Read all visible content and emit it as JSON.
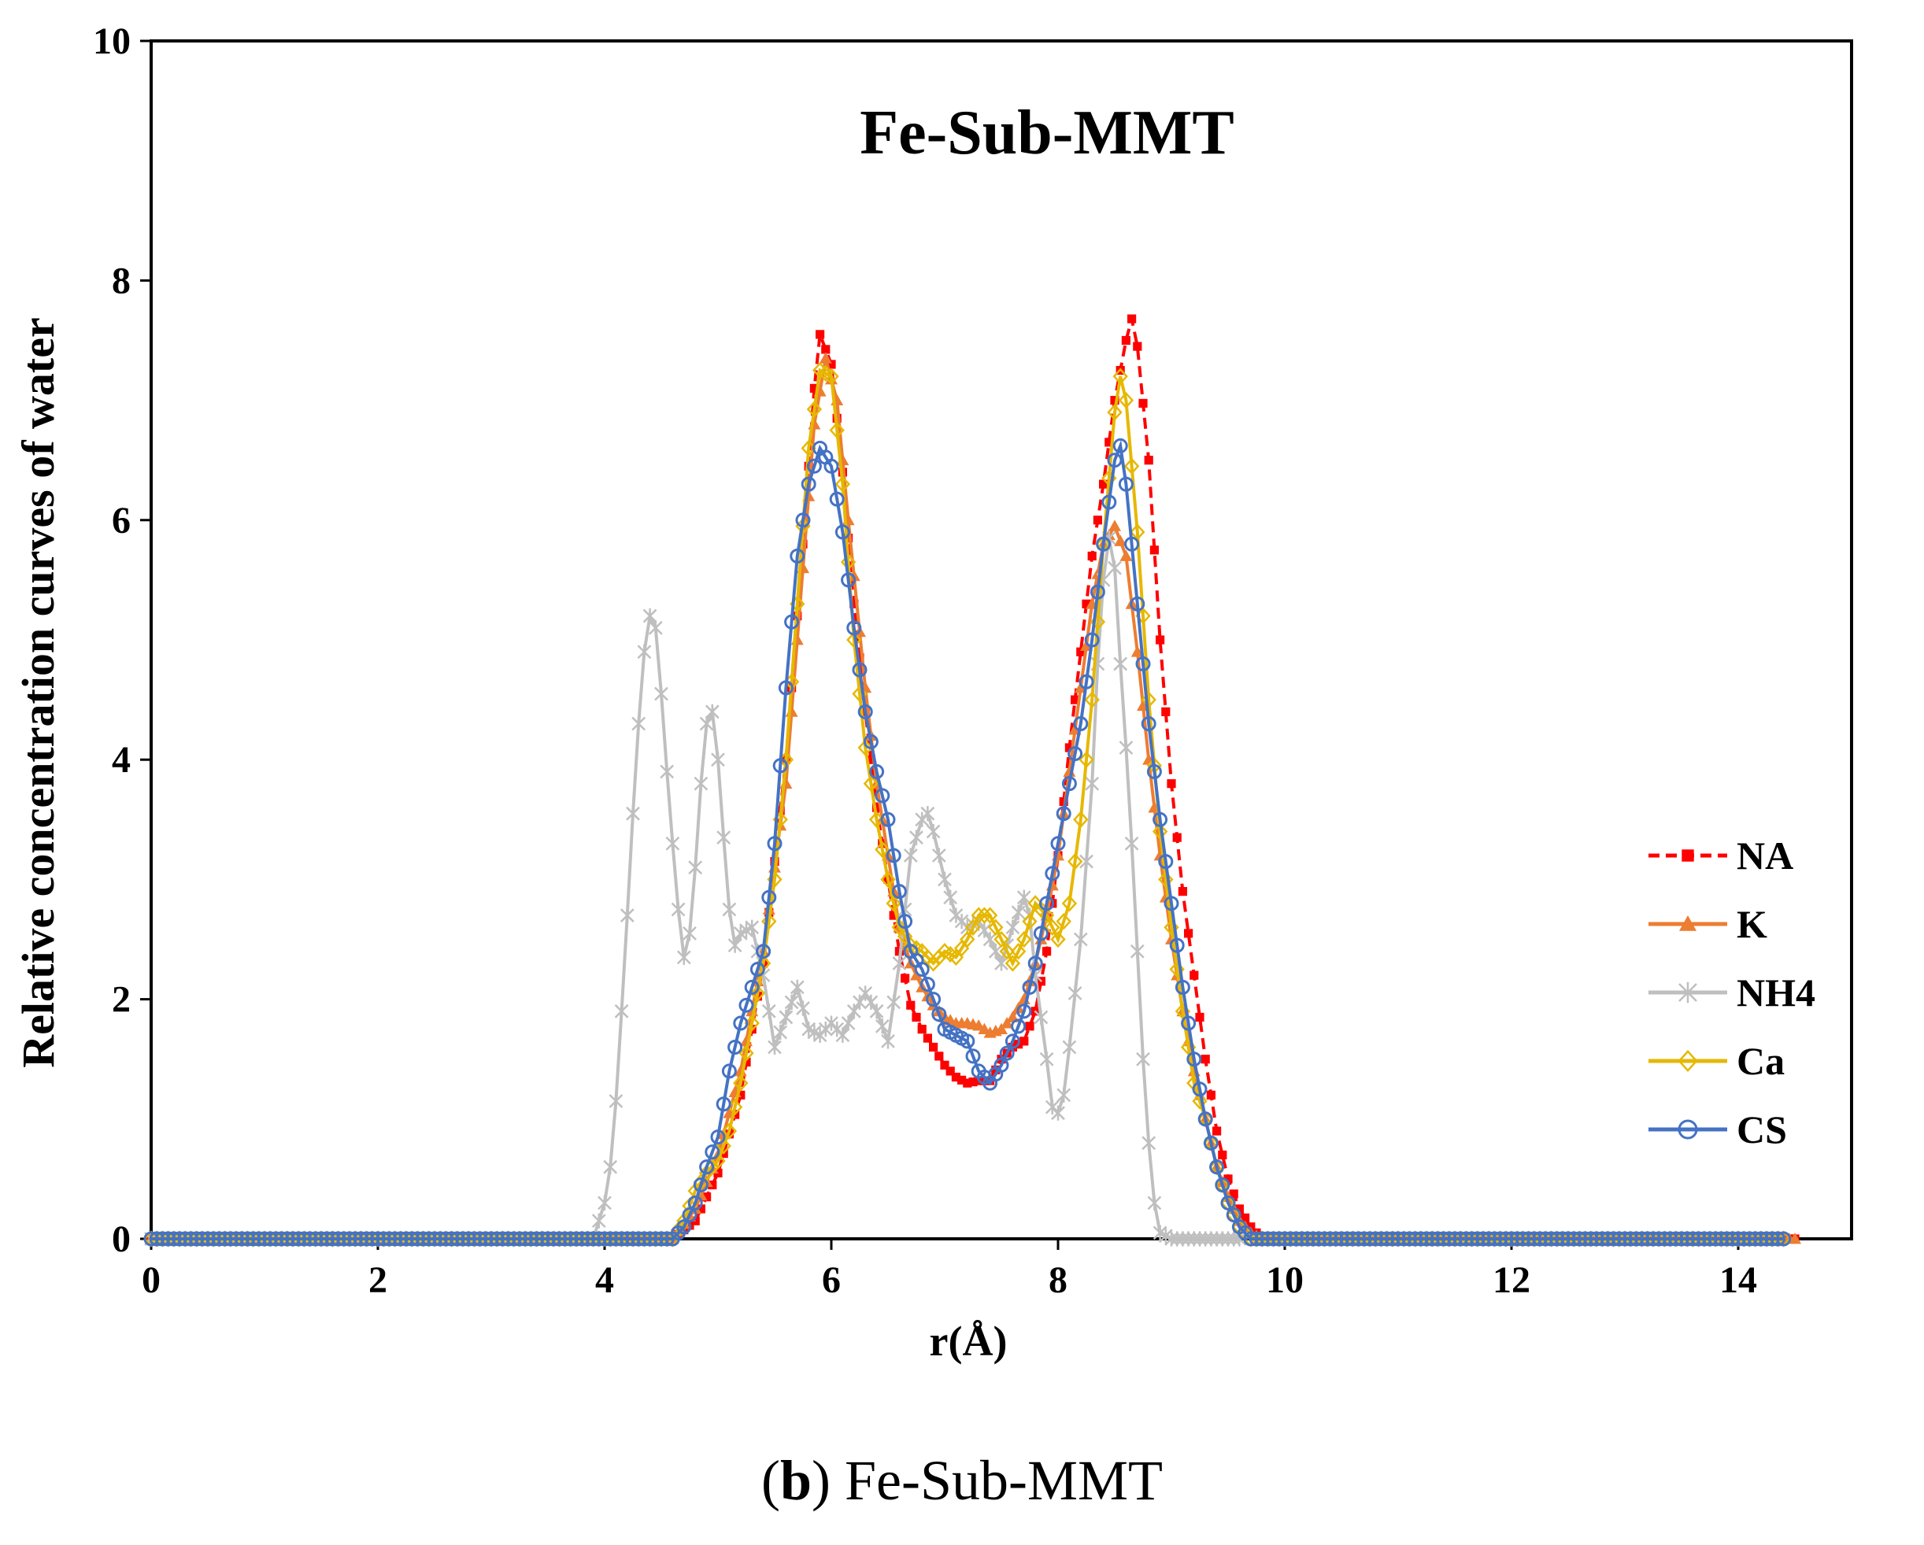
{
  "chart_data": {
    "type": "line",
    "title": "Fe-Sub-MMT",
    "xlabel": "r(Å)",
    "ylabel": "Relative concentration curves of  water",
    "xlim": [
      0,
      15
    ],
    "ylim": [
      0,
      10
    ],
    "xticks": [
      0,
      2,
      4,
      6,
      8,
      10,
      12,
      14
    ],
    "yticks": [
      0,
      2,
      4,
      6,
      8,
      10
    ],
    "grid": false,
    "legend_position": "right",
    "series": [
      {
        "name": "NA",
        "color": "#ff0000",
        "dashed": true,
        "marker": "square",
        "points": [
          [
            0,
            0
          ],
          [
            4.6,
            0
          ],
          [
            4.8,
            0.15
          ],
          [
            5.0,
            0.55
          ],
          [
            5.2,
            1.2
          ],
          [
            5.4,
            2.3
          ],
          [
            5.6,
            4.0
          ],
          [
            5.75,
            5.8
          ],
          [
            5.85,
            7.1
          ],
          [
            5.9,
            7.55
          ],
          [
            6.0,
            7.3
          ],
          [
            6.1,
            6.4
          ],
          [
            6.2,
            5.3
          ],
          [
            6.3,
            4.4
          ],
          [
            6.4,
            3.6
          ],
          [
            6.5,
            3.0
          ],
          [
            6.6,
            2.4
          ],
          [
            6.7,
            1.95
          ],
          [
            6.8,
            1.75
          ],
          [
            6.9,
            1.6
          ],
          [
            7.0,
            1.45
          ],
          [
            7.1,
            1.35
          ],
          [
            7.2,
            1.3
          ],
          [
            7.3,
            1.32
          ],
          [
            7.4,
            1.32
          ],
          [
            7.5,
            1.5
          ],
          [
            7.6,
            1.6
          ],
          [
            7.7,
            1.65
          ],
          [
            7.8,
            1.9
          ],
          [
            7.9,
            2.4
          ],
          [
            8.0,
            3.2
          ],
          [
            8.1,
            4.1
          ],
          [
            8.2,
            4.9
          ],
          [
            8.3,
            5.7
          ],
          [
            8.4,
            6.3
          ],
          [
            8.5,
            7.0
          ],
          [
            8.6,
            7.5
          ],
          [
            8.65,
            7.68
          ],
          [
            8.7,
            7.45
          ],
          [
            8.8,
            6.5
          ],
          [
            8.9,
            5.0
          ],
          [
            9.0,
            3.8
          ],
          [
            9.1,
            2.9
          ],
          [
            9.2,
            2.2
          ],
          [
            9.3,
            1.5
          ],
          [
            9.4,
            0.9
          ],
          [
            9.5,
            0.5
          ],
          [
            9.6,
            0.25
          ],
          [
            9.7,
            0.1
          ],
          [
            9.8,
            0
          ],
          [
            14.5,
            0
          ]
        ]
      },
      {
        "name": "K",
        "color": "#ed7d31",
        "dashed": false,
        "marker": "triangle",
        "points": [
          [
            0,
            0
          ],
          [
            4.6,
            0
          ],
          [
            4.8,
            0.25
          ],
          [
            5.0,
            0.7
          ],
          [
            5.2,
            1.4
          ],
          [
            5.4,
            2.4
          ],
          [
            5.6,
            3.8
          ],
          [
            5.75,
            5.6
          ],
          [
            5.85,
            6.8
          ],
          [
            5.95,
            7.35
          ],
          [
            6.05,
            7.0
          ],
          [
            6.15,
            6.0
          ],
          [
            6.3,
            4.6
          ],
          [
            6.4,
            3.8
          ],
          [
            6.5,
            3.2
          ],
          [
            6.6,
            2.6
          ],
          [
            6.7,
            2.3
          ],
          [
            6.8,
            2.1
          ],
          [
            6.9,
            1.95
          ],
          [
            7.0,
            1.85
          ],
          [
            7.1,
            1.8
          ],
          [
            7.2,
            1.8
          ],
          [
            7.3,
            1.78
          ],
          [
            7.4,
            1.72
          ],
          [
            7.5,
            1.75
          ],
          [
            7.6,
            1.85
          ],
          [
            7.7,
            2.0
          ],
          [
            7.8,
            2.3
          ],
          [
            7.9,
            2.7
          ],
          [
            8.0,
            3.2
          ],
          [
            8.1,
            3.9
          ],
          [
            8.2,
            4.6
          ],
          [
            8.3,
            5.3
          ],
          [
            8.4,
            5.8
          ],
          [
            8.5,
            5.95
          ],
          [
            8.6,
            5.7
          ],
          [
            8.7,
            4.9
          ],
          [
            8.8,
            4.0
          ],
          [
            8.9,
            3.2
          ],
          [
            9.0,
            2.5
          ],
          [
            9.1,
            1.9
          ],
          [
            9.2,
            1.4
          ],
          [
            9.3,
            1.0
          ],
          [
            9.4,
            0.6
          ],
          [
            9.5,
            0.35
          ],
          [
            9.6,
            0.15
          ],
          [
            9.7,
            0.05
          ],
          [
            9.8,
            0
          ],
          [
            14.5,
            0
          ]
        ]
      },
      {
        "name": "NH4",
        "color": "#bfbfbf",
        "dashed": false,
        "marker": "star",
        "points": [
          [
            0,
            0
          ],
          [
            3.9,
            0
          ],
          [
            4.0,
            0.3
          ],
          [
            4.05,
            0.6
          ],
          [
            4.1,
            1.15
          ],
          [
            4.15,
            1.9
          ],
          [
            4.2,
            2.7
          ],
          [
            4.25,
            3.55
          ],
          [
            4.3,
            4.3
          ],
          [
            4.35,
            4.9
          ],
          [
            4.4,
            5.2
          ],
          [
            4.45,
            5.1
          ],
          [
            4.5,
            4.55
          ],
          [
            4.55,
            3.9
          ],
          [
            4.6,
            3.3
          ],
          [
            4.65,
            2.75
          ],
          [
            4.7,
            2.35
          ],
          [
            4.75,
            2.55
          ],
          [
            4.8,
            3.1
          ],
          [
            4.85,
            3.8
          ],
          [
            4.9,
            4.3
          ],
          [
            4.95,
            4.4
          ],
          [
            5.0,
            4.0
          ],
          [
            5.05,
            3.35
          ],
          [
            5.1,
            2.75
          ],
          [
            5.15,
            2.45
          ],
          [
            5.2,
            2.55
          ],
          [
            5.3,
            2.6
          ],
          [
            5.4,
            2.2
          ],
          [
            5.5,
            1.6
          ],
          [
            5.6,
            1.85
          ],
          [
            5.7,
            2.1
          ],
          [
            5.8,
            1.75
          ],
          [
            5.9,
            1.7
          ],
          [
            6.0,
            1.8
          ],
          [
            6.1,
            1.7
          ],
          [
            6.2,
            1.9
          ],
          [
            6.3,
            2.05
          ],
          [
            6.4,
            1.9
          ],
          [
            6.5,
            1.65
          ],
          [
            6.6,
            2.3
          ],
          [
            6.7,
            3.2
          ],
          [
            6.8,
            3.5
          ],
          [
            6.85,
            3.55
          ],
          [
            6.9,
            3.4
          ],
          [
            7.0,
            3.0
          ],
          [
            7.1,
            2.7
          ],
          [
            7.2,
            2.6
          ],
          [
            7.3,
            2.65
          ],
          [
            7.4,
            2.5
          ],
          [
            7.5,
            2.3
          ],
          [
            7.6,
            2.6
          ],
          [
            7.7,
            2.85
          ],
          [
            7.75,
            2.7
          ],
          [
            7.8,
            2.2
          ],
          [
            7.9,
            1.5
          ],
          [
            7.95,
            1.1
          ],
          [
            8.0,
            1.05
          ],
          [
            8.05,
            1.2
          ],
          [
            8.1,
            1.6
          ],
          [
            8.2,
            2.5
          ],
          [
            8.3,
            3.8
          ],
          [
            8.35,
            4.8
          ],
          [
            8.4,
            5.5
          ],
          [
            8.45,
            5.85
          ],
          [
            8.5,
            5.6
          ],
          [
            8.55,
            4.8
          ],
          [
            8.6,
            4.1
          ],
          [
            8.65,
            3.3
          ],
          [
            8.7,
            2.4
          ],
          [
            8.75,
            1.5
          ],
          [
            8.8,
            0.8
          ],
          [
            8.85,
            0.3
          ],
          [
            8.9,
            0.05
          ],
          [
            9.0,
            0
          ],
          [
            9.6,
            0
          ]
        ]
      },
      {
        "name": "Ca",
        "color": "#e6b800",
        "dashed": false,
        "marker": "diamond",
        "points": [
          [
            0,
            0
          ],
          [
            4.6,
            0
          ],
          [
            4.7,
            0.15
          ],
          [
            4.8,
            0.4
          ],
          [
            4.9,
            0.55
          ],
          [
            5.0,
            0.65
          ],
          [
            5.1,
            0.9
          ],
          [
            5.2,
            1.3
          ],
          [
            5.3,
            1.8
          ],
          [
            5.4,
            2.3
          ],
          [
            5.5,
            3.0
          ],
          [
            5.6,
            4.0
          ],
          [
            5.7,
            5.3
          ],
          [
            5.8,
            6.6
          ],
          [
            5.9,
            7.25
          ],
          [
            6.0,
            7.2
          ],
          [
            6.1,
            6.3
          ],
          [
            6.2,
            5.0
          ],
          [
            6.3,
            4.1
          ],
          [
            6.4,
            3.5
          ],
          [
            6.5,
            3.0
          ],
          [
            6.6,
            2.6
          ],
          [
            6.7,
            2.45
          ],
          [
            6.8,
            2.4
          ],
          [
            6.9,
            2.3
          ],
          [
            7.0,
            2.4
          ],
          [
            7.1,
            2.35
          ],
          [
            7.2,
            2.5
          ],
          [
            7.3,
            2.7
          ],
          [
            7.4,
            2.7
          ],
          [
            7.5,
            2.5
          ],
          [
            7.6,
            2.3
          ],
          [
            7.7,
            2.5
          ],
          [
            7.8,
            2.8
          ],
          [
            7.9,
            2.7
          ],
          [
            8.0,
            2.5
          ],
          [
            8.1,
            2.8
          ],
          [
            8.2,
            3.5
          ],
          [
            8.3,
            4.5
          ],
          [
            8.4,
            5.8
          ],
          [
            8.5,
            6.9
          ],
          [
            8.55,
            7.2
          ],
          [
            8.6,
            7.0
          ],
          [
            8.7,
            5.9
          ],
          [
            8.8,
            4.5
          ],
          [
            8.9,
            3.4
          ],
          [
            9.0,
            2.6
          ],
          [
            9.1,
            1.9
          ],
          [
            9.2,
            1.3
          ],
          [
            9.3,
            1.0
          ],
          [
            9.4,
            0.6
          ],
          [
            9.5,
            0.3
          ],
          [
            9.6,
            0.1
          ],
          [
            9.7,
            0
          ],
          [
            14.4,
            0
          ]
        ]
      },
      {
        "name": "CS",
        "color": "#4472c4",
        "dashed": false,
        "marker": "circle",
        "points": [
          [
            0,
            0
          ],
          [
            4.6,
            0
          ],
          [
            4.7,
            0.1
          ],
          [
            4.8,
            0.3
          ],
          [
            4.9,
            0.6
          ],
          [
            5.0,
            0.85
          ],
          [
            5.1,
            1.4
          ],
          [
            5.2,
            1.8
          ],
          [
            5.3,
            2.1
          ],
          [
            5.4,
            2.4
          ],
          [
            5.5,
            3.3
          ],
          [
            5.6,
            4.6
          ],
          [
            5.7,
            5.7
          ],
          [
            5.8,
            6.3
          ],
          [
            5.9,
            6.6
          ],
          [
            6.0,
            6.45
          ],
          [
            6.1,
            5.9
          ],
          [
            6.2,
            5.1
          ],
          [
            6.3,
            4.4
          ],
          [
            6.4,
            3.9
          ],
          [
            6.5,
            3.5
          ],
          [
            6.6,
            2.9
          ],
          [
            6.7,
            2.4
          ],
          [
            6.8,
            2.25
          ],
          [
            6.9,
            2.0
          ],
          [
            7.0,
            1.75
          ],
          [
            7.1,
            1.7
          ],
          [
            7.2,
            1.65
          ],
          [
            7.3,
            1.4
          ],
          [
            7.4,
            1.3
          ],
          [
            7.5,
            1.45
          ],
          [
            7.6,
            1.65
          ],
          [
            7.7,
            1.9
          ],
          [
            7.8,
            2.3
          ],
          [
            7.9,
            2.8
          ],
          [
            8.0,
            3.3
          ],
          [
            8.1,
            3.8
          ],
          [
            8.2,
            4.3
          ],
          [
            8.3,
            5.0
          ],
          [
            8.4,
            5.8
          ],
          [
            8.5,
            6.5
          ],
          [
            8.55,
            6.62
          ],
          [
            8.6,
            6.3
          ],
          [
            8.7,
            5.3
          ],
          [
            8.8,
            4.3
          ],
          [
            8.9,
            3.5
          ],
          [
            9.0,
            2.8
          ],
          [
            9.1,
            2.1
          ],
          [
            9.2,
            1.5
          ],
          [
            9.3,
            1.0
          ],
          [
            9.4,
            0.6
          ],
          [
            9.5,
            0.3
          ],
          [
            9.6,
            0.1
          ],
          [
            9.7,
            0
          ],
          [
            14.4,
            0
          ]
        ]
      }
    ]
  },
  "caption": {
    "label": "b",
    "text": " Fe-Sub-MMT"
  }
}
